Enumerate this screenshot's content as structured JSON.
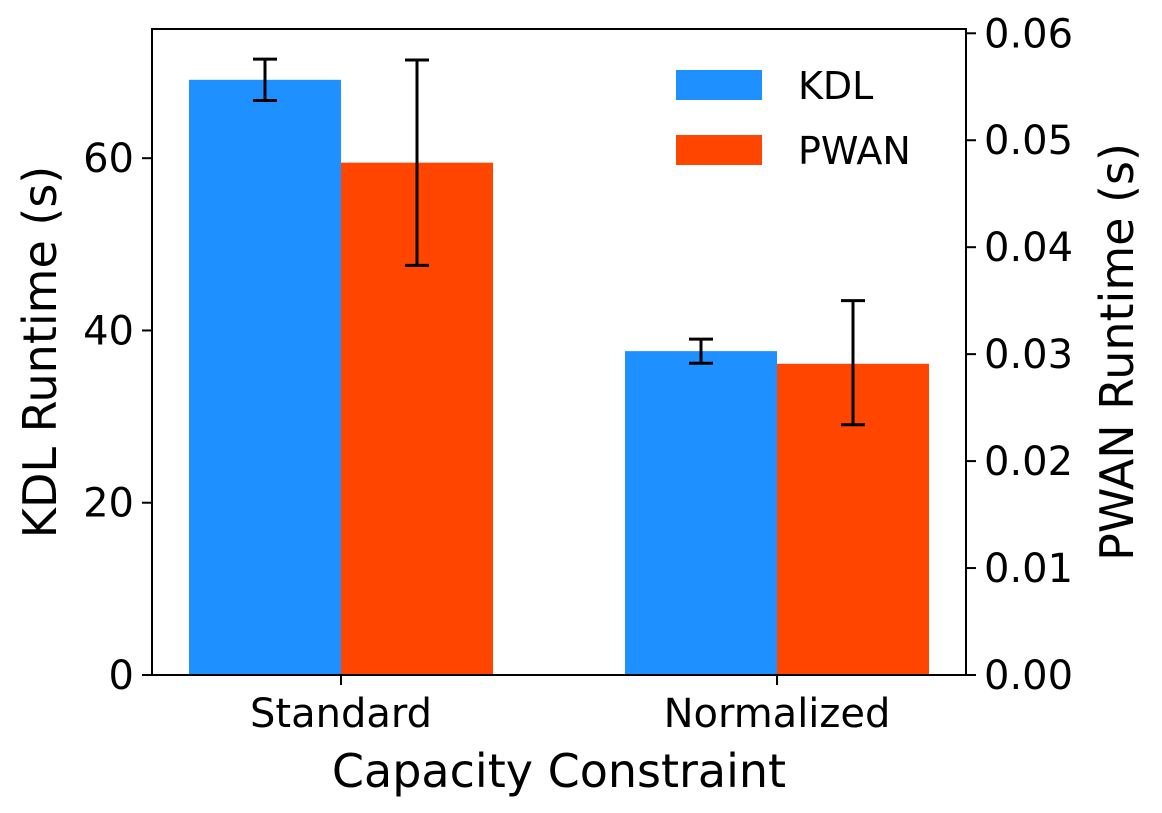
{
  "chart_data": {
    "type": "bar",
    "categories": [
      "Standard",
      "Normalized"
    ],
    "xlabel": "Capacity Constraint",
    "series": [
      {
        "name": "KDL",
        "axis": "left",
        "color": "#1E90FF",
        "values": [
          69.1,
          37.6
        ],
        "err_low": [
          66.7,
          36.2
        ],
        "err_high": [
          71.5,
          39.0
        ]
      },
      {
        "name": "PWAN",
        "axis": "right",
        "color": "#FF4500",
        "values": [
          0.0479,
          0.0291
        ],
        "err_low": [
          0.0383,
          0.0234
        ],
        "err_high": [
          0.0575,
          0.035
        ]
      }
    ],
    "left_axis": {
      "label": "KDL Runtime (s)",
      "ylim": [
        0,
        75
      ],
      "ticks": [
        0,
        20,
        40,
        60
      ],
      "tick_labels": [
        "0",
        "20",
        "40",
        "60"
      ]
    },
    "right_axis": {
      "label": "PWAN Runtime (s)",
      "ylim": [
        0,
        0.0604
      ],
      "ticks": [
        0.0,
        0.01,
        0.02,
        0.03,
        0.04,
        0.05,
        0.06
      ],
      "tick_labels": [
        "0.00",
        "0.01",
        "0.02",
        "0.03",
        "0.04",
        "0.05",
        "0.06"
      ]
    },
    "legend": {
      "position": "top-right",
      "entries": [
        "KDL",
        "PWAN"
      ]
    },
    "grid": false
  }
}
